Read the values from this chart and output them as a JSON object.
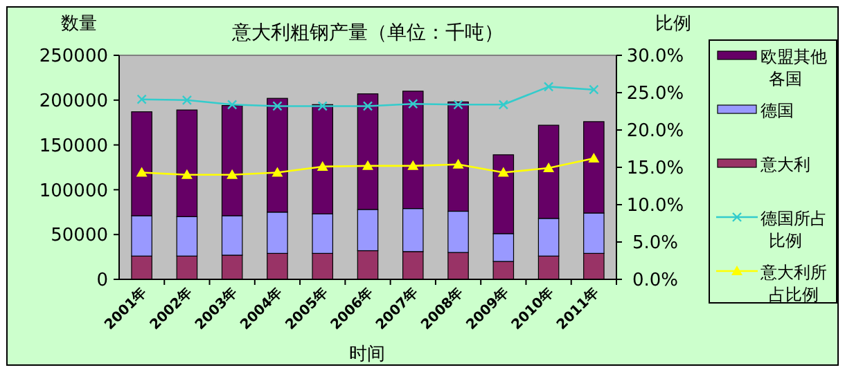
{
  "chart_data": {
    "type": "bar",
    "title": "意大利粗钢产量（单位：千吨）",
    "xlabel": "时间",
    "ylabel": "数量",
    "y2label": "比例",
    "categories": [
      "2001年",
      "2002年",
      "2003年",
      "2004年",
      "2005年",
      "2006年",
      "2007年",
      "2008年",
      "2009年",
      "2010年",
      "2011年"
    ],
    "stacked": true,
    "legend": "right",
    "grid": false,
    "ylim": [
      0,
      250000
    ],
    "yticks": [
      0,
      50000,
      100000,
      150000,
      200000,
      250000
    ],
    "y2lim": [
      0,
      30
    ],
    "y2ticks": [
      {
        "value": 0,
        "label": "0.0%"
      },
      {
        "value": 5,
        "label": "5.0%"
      },
      {
        "value": 10,
        "label": "10.0%"
      },
      {
        "value": 15,
        "label": "15.0%"
      },
      {
        "value": 20,
        "label": "20.0%"
      },
      {
        "value": 25,
        "label": "25.0%"
      },
      {
        "value": 30,
        "label": "30.0%"
      }
    ],
    "series": [
      {
        "name": "意大利",
        "color": "#993366",
        "values": [
          26000,
          26000,
          27000,
          29000,
          29000,
          32000,
          31000,
          30000,
          20000,
          26000,
          29000
        ]
      },
      {
        "name": "德国",
        "color": "#9999ff",
        "values": [
          45000,
          44000,
          44000,
          46000,
          44000,
          46000,
          48000,
          46000,
          31000,
          42000,
          45000
        ]
      },
      {
        "name": "欧盟其他各国",
        "color": "#660066",
        "values": [
          116000,
          119000,
          123000,
          127000,
          122000,
          129000,
          131000,
          122000,
          88000,
          104000,
          102000
        ]
      },
      {
        "name": "德国所占比例",
        "type": "line",
        "axis": "y2",
        "color": "#33cccc",
        "marker": "cross",
        "values": [
          24.1,
          24.0,
          23.4,
          23.2,
          23.2,
          23.2,
          23.5,
          23.4,
          23.4,
          25.8,
          25.4
        ]
      },
      {
        "name": "意大利所占比例",
        "type": "line",
        "axis": "y2",
        "color": "#ffff00",
        "marker": "triangle",
        "values": [
          14.3,
          14.0,
          14.0,
          14.3,
          15.1,
          15.2,
          15.2,
          15.4,
          14.3,
          14.9,
          16.2
        ]
      }
    ]
  }
}
